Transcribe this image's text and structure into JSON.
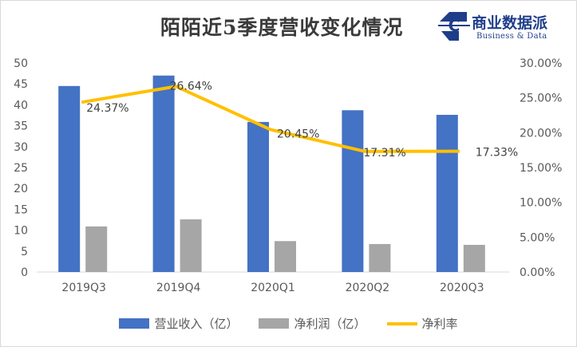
{
  "title": "陌陌近5季度营收变化情况",
  "logo": {
    "letter": "C",
    "name": "商业数据派",
    "subtitle": "Business & Data"
  },
  "colors": {
    "revenue": "#4472c4",
    "profit": "#a6a6a6",
    "margin": "#ffc000"
  },
  "chart_data": {
    "type": "bar",
    "title": "陌陌近5季度营收变化情况",
    "categories": [
      "2019Q3",
      "2019Q4",
      "2020Q1",
      "2020Q2",
      "2020Q3"
    ],
    "series": [
      {
        "name": "营业收入（亿）",
        "kind": "bar",
        "axis": "left",
        "values": [
          44.5,
          47.0,
          35.9,
          38.7,
          37.6
        ]
      },
      {
        "name": "净利润（亿）",
        "kind": "bar",
        "axis": "left",
        "values": [
          10.9,
          12.6,
          7.4,
          6.7,
          6.5
        ]
      },
      {
        "name": "净利率",
        "kind": "line",
        "axis": "right",
        "values": [
          24.37,
          26.64,
          20.45,
          17.31,
          17.33
        ]
      }
    ],
    "data_labels": [
      "24.37%",
      "26.64%",
      "20.45%",
      "17.31%",
      "17.33%"
    ],
    "y_left": {
      "min": 0,
      "max": 50,
      "ticks": [
        "0",
        "5",
        "10",
        "15",
        "20",
        "25",
        "30",
        "35",
        "40",
        "45",
        "50"
      ]
    },
    "y_right": {
      "min": 0,
      "max": 30,
      "ticks": [
        "0.00%",
        "5.00%",
        "10.00%",
        "15.00%",
        "20.00%",
        "25.00%",
        "30.00%"
      ]
    },
    "legend_position": "bottom",
    "grid": false
  }
}
